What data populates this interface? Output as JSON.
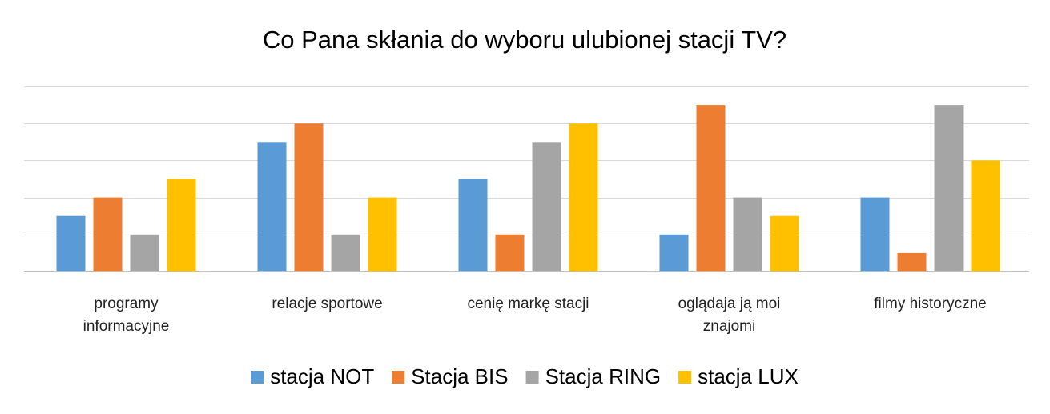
{
  "chart_data": {
    "type": "bar",
    "title": "Co Pana skłania do wyboru ulubionej stacji TV?",
    "xlabel": "",
    "ylabel": "",
    "categories": [
      [
        "programy",
        "informacyjne"
      ],
      [
        "relacje sportowe"
      ],
      [
        "cenię markę stacji"
      ],
      [
        "oglądaja ją moi",
        "znajomi"
      ],
      [
        "filmy historyczne"
      ]
    ],
    "series": [
      {
        "name": "stacja NOT",
        "color": "#5b9bd5",
        "values": [
          3,
          7,
          5,
          2,
          4
        ]
      },
      {
        "name": "Stacja BIS",
        "color": "#ed7d31",
        "values": [
          4,
          8,
          2,
          9,
          1
        ]
      },
      {
        "name": "Stacja RING",
        "color": "#a5a5a5",
        "values": [
          2,
          2,
          7,
          4,
          9
        ]
      },
      {
        "name": "stacja LUX",
        "color": "#ffc000",
        "values": [
          5,
          4,
          8,
          3,
          6
        ]
      }
    ],
    "ylim": [
      0,
      10
    ],
    "grid": true,
    "gridline_count": 5,
    "y_tick_labels_shown": false,
    "legend_position": "bottom"
  }
}
